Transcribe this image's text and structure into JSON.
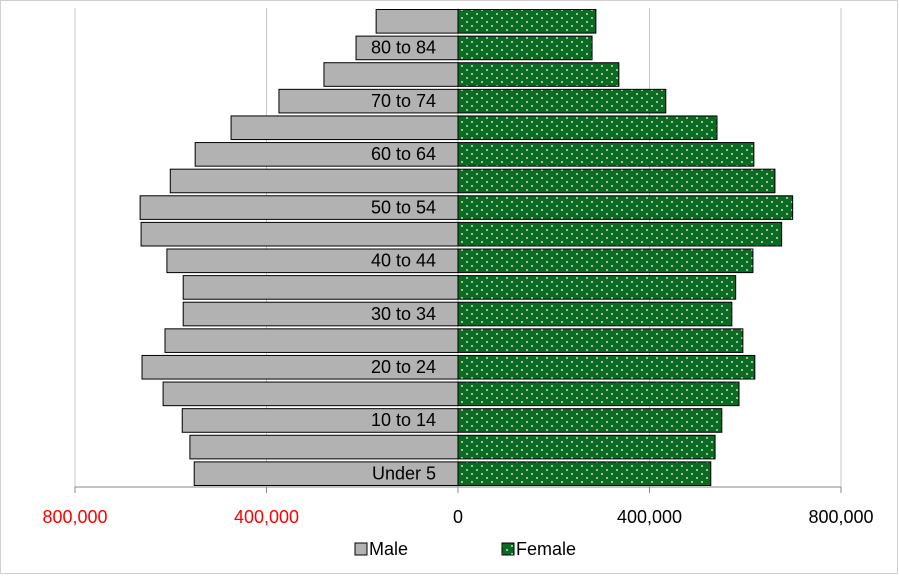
{
  "chart_data": {
    "type": "pyramid",
    "categories": [
      "Under 5",
      null,
      "10 to 14",
      null,
      "20 to 24",
      null,
      "30 to 34",
      null,
      "40 to 44",
      null,
      "50 to 54",
      null,
      "60 to 64",
      null,
      "70 to 74",
      null,
      "80 to 84",
      null
    ],
    "series": [
      {
        "name": "Male",
        "color": "#b2b2b2",
        "values": [
          -551000,
          -560000,
          -576000,
          -616000,
          -660000,
          -612000,
          -574000,
          -574000,
          -608000,
          -662000,
          -664000,
          -601000,
          -549000,
          -474000,
          -374000,
          -280000,
          -213000,
          -171000
        ]
      },
      {
        "name": "Female",
        "color": "#0b6b22",
        "values": [
          528000,
          537000,
          551000,
          587000,
          620000,
          595000,
          572000,
          580000,
          616000,
          676000,
          699000,
          662000,
          618000,
          541000,
          434000,
          336000,
          280000,
          288000
        ]
      }
    ],
    "xlim": [
      -800000,
      800000
    ],
    "xticks": [
      {
        "value": -800000,
        "label": "800,000"
      },
      {
        "value": -400000,
        "label": "400,000"
      },
      0,
      {
        "value": 400000,
        "label": "400,000"
      },
      {
        "value": 800000,
        "label": "800,000"
      }
    ],
    "negative_tick_color": "#ff0000",
    "grid": true,
    "legend": "bottom"
  }
}
